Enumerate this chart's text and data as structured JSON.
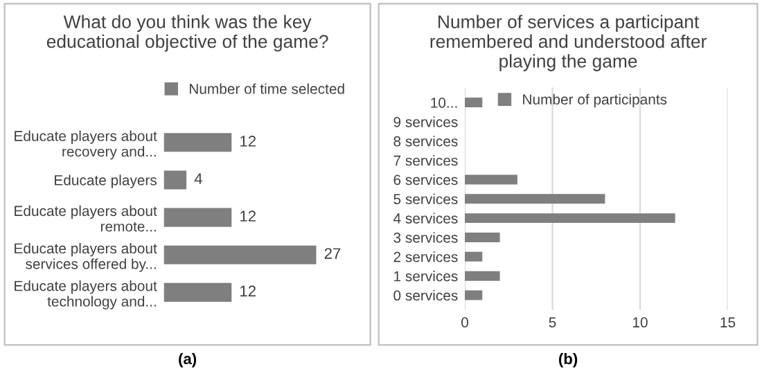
{
  "chart_data": [
    {
      "type": "bar",
      "orientation": "horizontal",
      "title": "What do you think was the key\neducational objective of the game?",
      "categories": [
        "Educate players about\nrecovery and...",
        "Educate players",
        "Educate players about\nremote...",
        "Educate players about\nservices offered by...",
        "Educate players about\ntechnology and..."
      ],
      "series": [
        {
          "name": "Number of time selected",
          "color": "#7f7f7f",
          "values": [
            12,
            4,
            12,
            27,
            12
          ]
        }
      ],
      "data_labels": true,
      "legend": "top",
      "grid": false,
      "tick_labels": "y",
      "annotations": [
        "(a)"
      ]
    },
    {
      "type": "bar",
      "orientation": "horizontal",
      "title": "Number of services a participant\nremembered and understood after\nplaying the game",
      "categories": [
        "10...",
        "9 services",
        "8 services",
        "7 services",
        "6 services",
        "5 services",
        "4 services",
        "3 services",
        "2 services",
        "1 services",
        "0 services"
      ],
      "series": [
        {
          "name": "Number of participants",
          "color": "#7f7f7f",
          "values": [
            1,
            0,
            0,
            0,
            3,
            8,
            12,
            2,
            1,
            2,
            1
          ]
        }
      ],
      "xlim": [
        0,
        15
      ],
      "xticks": [
        0,
        5,
        10,
        15
      ],
      "legend": "top left",
      "grid": "x",
      "annotations": [
        "(b)"
      ]
    }
  ]
}
